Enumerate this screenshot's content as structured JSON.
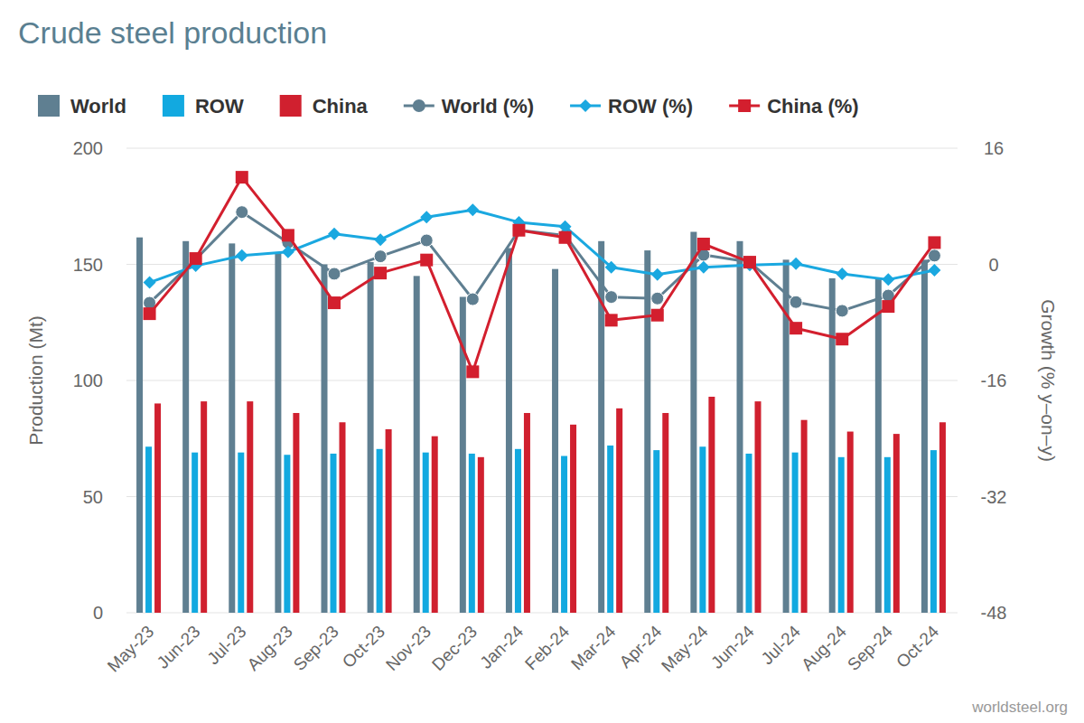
{
  "chart_data": {
    "type": "bar",
    "title": "Crude steel production",
    "source": "worldsteel.org",
    "y_label": "Production (Mt)",
    "y2_label": "Growth (% y–on–y)",
    "categories": [
      "May-23",
      "Jun-23",
      "Jul-23",
      "Aug-23",
      "Sep-23",
      "Oct-23",
      "Nov-23",
      "Dec-23",
      "Jan-24",
      "Feb-24",
      "Mar-24",
      "Apr-24",
      "May-24",
      "Jun-24",
      "Jul-24",
      "Aug-24",
      "Sep-24",
      "Oct-24"
    ],
    "ylim": [
      0,
      200
    ],
    "yticks": [
      0,
      50,
      100,
      150,
      200
    ],
    "y2lim": [
      -48,
      16
    ],
    "y2ticks": [
      -48,
      -32,
      -16,
      0,
      16
    ],
    "grid": true,
    "legend": "top",
    "series": [
      {
        "name": "World",
        "type": "bar",
        "color": "#5f7f91",
        "values": [
          161.6,
          160,
          159,
          155,
          150,
          151,
          145,
          136,
          157,
          148,
          160,
          156,
          164,
          160,
          152,
          144,
          144,
          152
        ]
      },
      {
        "name": "ROW",
        "type": "bar",
        "color": "#12a9e0",
        "values": [
          71.5,
          69,
          69,
          68,
          68.5,
          70.5,
          69,
          68.5,
          70.5,
          67.5,
          72,
          70,
          71.5,
          68.5,
          69,
          67,
          67,
          70
        ]
      },
      {
        "name": "China",
        "type": "bar",
        "color": "#d0202f",
        "values": [
          90.1,
          91,
          91,
          86,
          82,
          79,
          76,
          67,
          86,
          81,
          88,
          86,
          93,
          91,
          83,
          78,
          77,
          82
        ]
      },
      {
        "name": "World (%)",
        "type": "line",
        "axis": "y2",
        "color": "#5f7f91",
        "marker": "circle",
        "values": [
          -5.3,
          0.7,
          7.2,
          3.0,
          -1.3,
          1.1,
          3.3,
          -4.8,
          4.7,
          4.0,
          -4.5,
          -4.7,
          1.3,
          0.3,
          -5.2,
          -6.4,
          -4.3,
          1.2
        ]
      },
      {
        "name": "ROW (%)",
        "type": "line",
        "axis": "y2",
        "color": "#1aa8e0",
        "marker": "diamond",
        "values": [
          -2.5,
          -0.2,
          1.2,
          1.7,
          4.2,
          3.4,
          6.5,
          7.5,
          5.8,
          5.2,
          -0.4,
          -1.4,
          -0.4,
          -0.1,
          0.1,
          -1.3,
          -2.1,
          -0.8
        ]
      },
      {
        "name": "China (%)",
        "type": "line",
        "axis": "y2",
        "color": "#d31f2e",
        "marker": "square",
        "values": [
          -6.8,
          0.8,
          12.0,
          4.0,
          -5.3,
          -1.2,
          0.6,
          -14.8,
          4.7,
          3.7,
          -7.7,
          -7.0,
          2.8,
          0.3,
          -8.8,
          -10.3,
          -5.8,
          3.0
        ]
      }
    ]
  }
}
